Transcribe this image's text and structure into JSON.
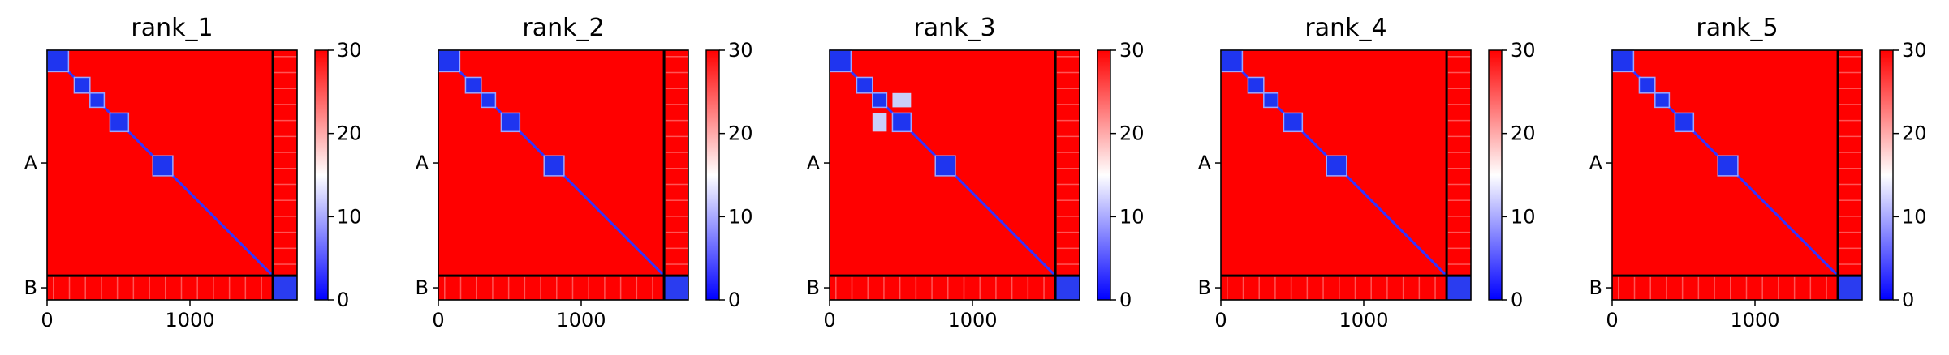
{
  "chart_data": [
    {
      "type": "heatmap",
      "title": "rank_1",
      "xlim": [
        0,
        1750
      ],
      "x_ticks": [
        0,
        1000
      ],
      "x_tick_labels": [
        "0",
        "1000"
      ],
      "y_tick_labels": [
        "A",
        "B"
      ],
      "chain_boundary": 1580,
      "colorbar": {
        "min": 0,
        "max": 30,
        "ticks": [
          0,
          10,
          20,
          30
        ],
        "cmap": "bwr"
      },
      "diagonal_blocks": [
        [
          0,
          150
        ],
        [
          190,
          300
        ],
        [
          300,
          400
        ],
        [
          440,
          570
        ],
        [
          740,
          880
        ]
      ],
      "off_diagonal_blocks": []
    },
    {
      "type": "heatmap",
      "title": "rank_2",
      "xlim": [
        0,
        1750
      ],
      "x_ticks": [
        0,
        1000
      ],
      "x_tick_labels": [
        "0",
        "1000"
      ],
      "y_tick_labels": [
        "A",
        "B"
      ],
      "chain_boundary": 1580,
      "colorbar": {
        "min": 0,
        "max": 30,
        "ticks": [
          0,
          10,
          20,
          30
        ],
        "cmap": "bwr"
      },
      "diagonal_blocks": [
        [
          0,
          150
        ],
        [
          190,
          300
        ],
        [
          300,
          400
        ],
        [
          440,
          570
        ],
        [
          740,
          880
        ]
      ],
      "off_diagonal_blocks": []
    },
    {
      "type": "heatmap",
      "title": "rank_3",
      "xlim": [
        0,
        1750
      ],
      "x_ticks": [
        0,
        1000
      ],
      "x_tick_labels": [
        "0",
        "1000"
      ],
      "y_tick_labels": [
        "A",
        "B"
      ],
      "chain_boundary": 1580,
      "colorbar": {
        "min": 0,
        "max": 30,
        "ticks": [
          0,
          10,
          20,
          30
        ],
        "cmap": "bwr"
      },
      "diagonal_blocks": [
        [
          0,
          150
        ],
        [
          190,
          300
        ],
        [
          300,
          400
        ],
        [
          440,
          570
        ],
        [
          740,
          880
        ]
      ],
      "off_diagonal_blocks": [
        [
          [
            300,
            400
          ],
          [
            440,
            570
          ]
        ],
        [
          [
            440,
            570
          ],
          [
            300,
            400
          ]
        ]
      ]
    },
    {
      "type": "heatmap",
      "title": "rank_4",
      "xlim": [
        0,
        1750
      ],
      "x_ticks": [
        0,
        1000
      ],
      "x_tick_labels": [
        "0",
        "1000"
      ],
      "y_tick_labels": [
        "A",
        "B"
      ],
      "chain_boundary": 1580,
      "colorbar": {
        "min": 0,
        "max": 30,
        "ticks": [
          0,
          10,
          20,
          30
        ],
        "cmap": "bwr"
      },
      "diagonal_blocks": [
        [
          0,
          150
        ],
        [
          190,
          300
        ],
        [
          300,
          400
        ],
        [
          440,
          570
        ],
        [
          740,
          880
        ]
      ],
      "off_diagonal_blocks": []
    },
    {
      "type": "heatmap",
      "title": "rank_5",
      "xlim": [
        0,
        1750
      ],
      "x_ticks": [
        0,
        1000
      ],
      "x_tick_labels": [
        "0",
        "1000"
      ],
      "y_tick_labels": [
        "A",
        "B"
      ],
      "chain_boundary": 1580,
      "colorbar": {
        "min": 0,
        "max": 30,
        "ticks": [
          0,
          10,
          20,
          30
        ],
        "cmap": "bwr"
      },
      "diagonal_blocks": [
        [
          0,
          150
        ],
        [
          190,
          300
        ],
        [
          300,
          400
        ],
        [
          440,
          570
        ],
        [
          740,
          880
        ]
      ],
      "off_diagonal_blocks": []
    }
  ]
}
